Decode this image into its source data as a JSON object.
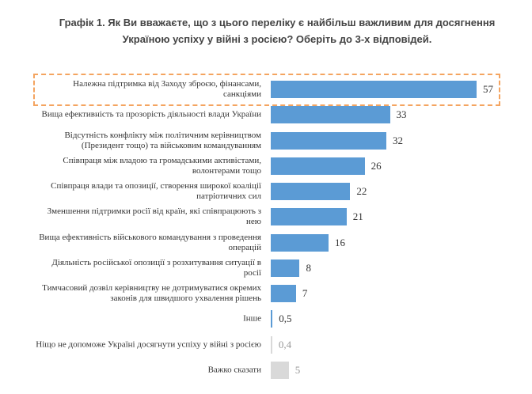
{
  "chart_data": {
    "type": "bar",
    "orientation": "horizontal",
    "title": "Графік 1. Як Ви вважаєте, що з цього переліку є найбільш важливим для досягнення Україною успіху у війні з росією? Оберіть до 3-х відповідей.",
    "categories": [
      "Належна підтримка від Заходу зброєю, фінансами, санкціями",
      "Вища ефективність та прозорість діяльності влади України",
      "Відсутність конфлікту між політичним керівництвом (Президент тощо) та військовим командуванням",
      "Співпраця між владою та громадськими активістами, волонтерами тощо",
      "Співпраця влади та опозиції, створення широкої коаліції патріотичних сил",
      "Зменшення підтримки росії від країн, які співпрацюють з нею",
      "Вища ефективність військового командування з проведення операцій",
      "Діяльність російської опозиції з розхитування ситуації в росії",
      "Тимчасовий дозвіл керівництву не дотримуватися окремих законів для швидшого ухвалення  рішень",
      "Інше",
      "Ніщо не допоможе Україні досягнути успіху у війні з росією",
      "Важко сказати"
    ],
    "values": [
      57,
      33,
      32,
      26,
      22,
      21,
      16,
      8,
      7,
      0.5,
      0.4,
      5
    ],
    "value_labels": [
      "57",
      "33",
      "32",
      "26",
      "22",
      "21",
      "16",
      "8",
      "7",
      "0,5",
      "0,4",
      "5"
    ],
    "colors": [
      "#5b9bd5",
      "#5b9bd5",
      "#5b9bd5",
      "#5b9bd5",
      "#5b9bd5",
      "#5b9bd5",
      "#5b9bd5",
      "#5b9bd5",
      "#5b9bd5",
      "#5b9bd5",
      "#d9d9d9",
      "#d9d9d9"
    ],
    "xlim": [
      0,
      57
    ]
  }
}
